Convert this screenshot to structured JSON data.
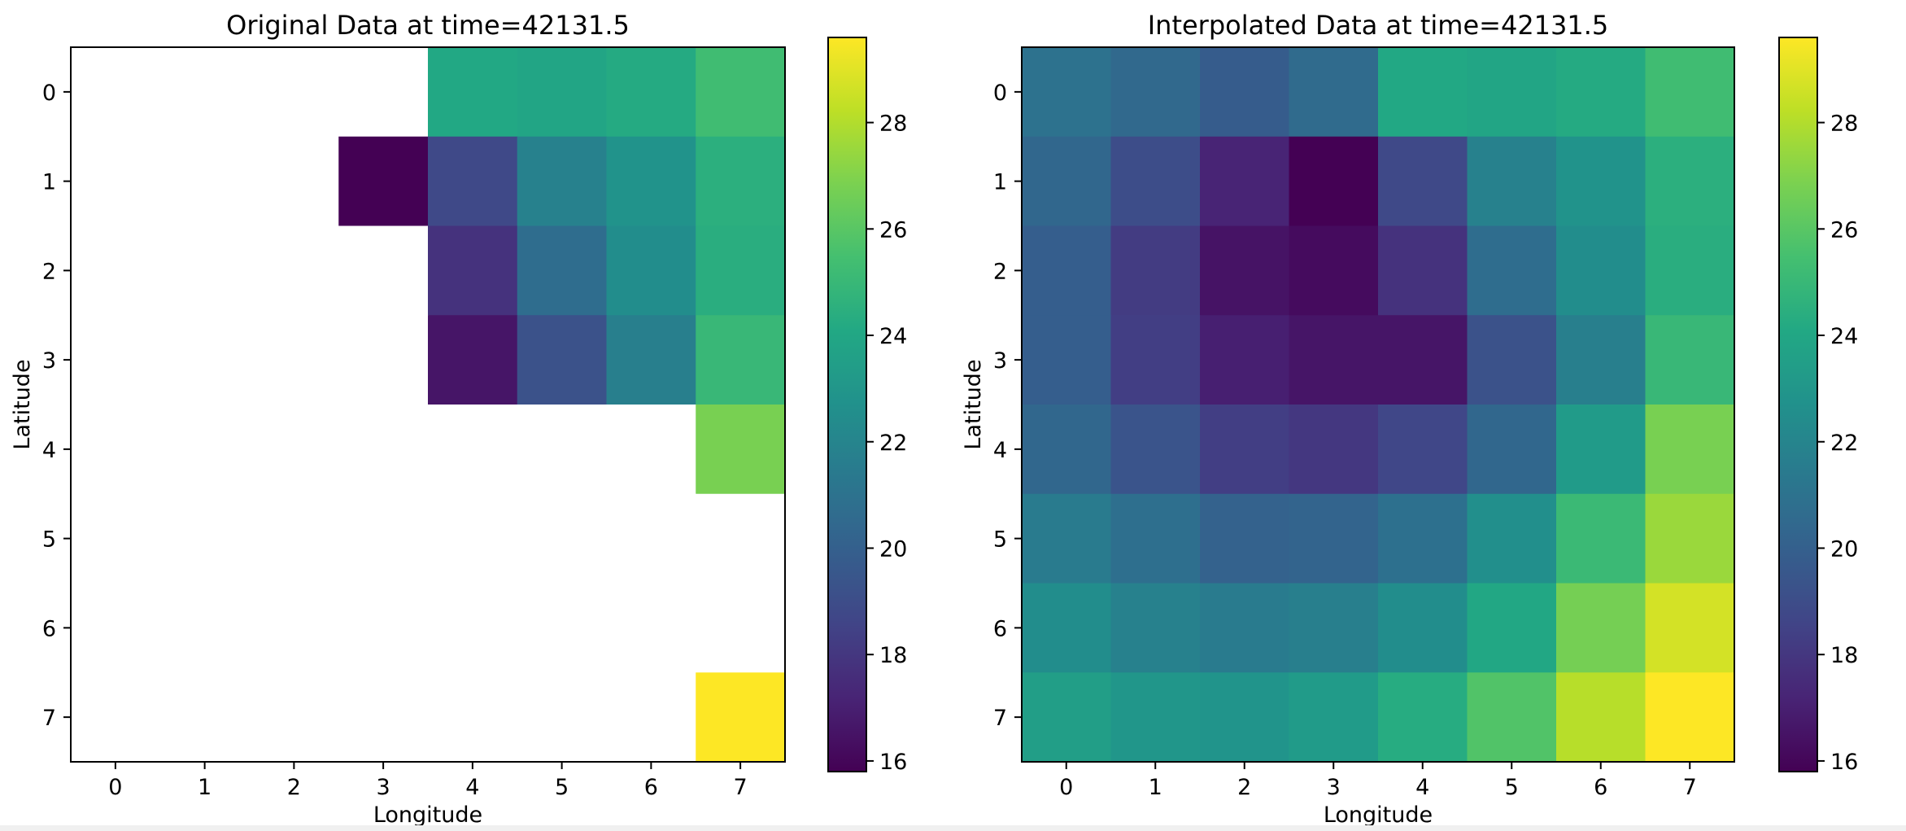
{
  "chart_data": [
    {
      "type": "heatmap",
      "title": "Original Data at time=42131.5",
      "xlabel": "Longitude",
      "ylabel": "Latitude",
      "x_ticks": [
        "0",
        "1",
        "2",
        "3",
        "4",
        "5",
        "6",
        "7"
      ],
      "y_ticks": [
        "0",
        "1",
        "2",
        "3",
        "4",
        "5",
        "6",
        "7"
      ],
      "colormap": "viridis",
      "vmin": 15.8,
      "vmax": 29.6,
      "colorbar_ticks": [
        "16",
        "18",
        "20",
        "22",
        "24",
        "26",
        "28"
      ],
      "missing_color": "#ffffff",
      "values": [
        [
          null,
          null,
          null,
          null,
          24.1,
          23.9,
          24.2,
          25.3
        ],
        [
          null,
          null,
          null,
          15.8,
          18.8,
          21.8,
          22.8,
          24.5
        ],
        [
          null,
          null,
          null,
          null,
          17.8,
          20.7,
          22.5,
          24.4
        ],
        [
          null,
          null,
          null,
          null,
          16.6,
          19.3,
          21.7,
          25.0
        ],
        [
          null,
          null,
          null,
          null,
          null,
          null,
          null,
          26.8
        ],
        [
          null,
          null,
          null,
          null,
          null,
          null,
          null,
          null
        ],
        [
          null,
          null,
          null,
          null,
          null,
          null,
          null,
          null
        ],
        [
          null,
          null,
          null,
          null,
          null,
          null,
          null,
          29.6
        ]
      ]
    },
    {
      "type": "heatmap",
      "title": "Interpolated Data at time=42131.5",
      "xlabel": "Longitude",
      "ylabel": "Latitude",
      "x_ticks": [
        "0",
        "1",
        "2",
        "3",
        "4",
        "5",
        "6",
        "7"
      ],
      "y_ticks": [
        "0",
        "1",
        "2",
        "3",
        "4",
        "5",
        "6",
        "7"
      ],
      "colormap": "viridis",
      "vmin": 15.8,
      "vmax": 29.6,
      "colorbar_ticks": [
        "16",
        "18",
        "20",
        "22",
        "24",
        "26",
        "28"
      ],
      "values": [
        [
          21.0,
          20.5,
          19.8,
          20.6,
          24.1,
          23.9,
          24.2,
          25.3
        ],
        [
          20.4,
          19.0,
          17.2,
          15.8,
          18.8,
          21.8,
          22.8,
          24.5
        ],
        [
          19.9,
          18.2,
          16.5,
          16.2,
          17.8,
          20.7,
          22.5,
          24.4
        ],
        [
          19.9,
          18.3,
          17.0,
          16.6,
          16.6,
          19.3,
          21.7,
          25.0
        ],
        [
          20.4,
          19.4,
          18.3,
          18.0,
          18.7,
          20.4,
          23.3,
          26.8
        ],
        [
          21.5,
          20.8,
          20.1,
          20.2,
          20.9,
          22.6,
          25.1,
          27.5
        ],
        [
          22.5,
          21.8,
          21.5,
          21.7,
          22.5,
          24.0,
          26.7,
          28.7
        ],
        [
          23.5,
          23.0,
          22.9,
          23.3,
          24.3,
          25.8,
          28.1,
          29.6
        ]
      ]
    }
  ]
}
